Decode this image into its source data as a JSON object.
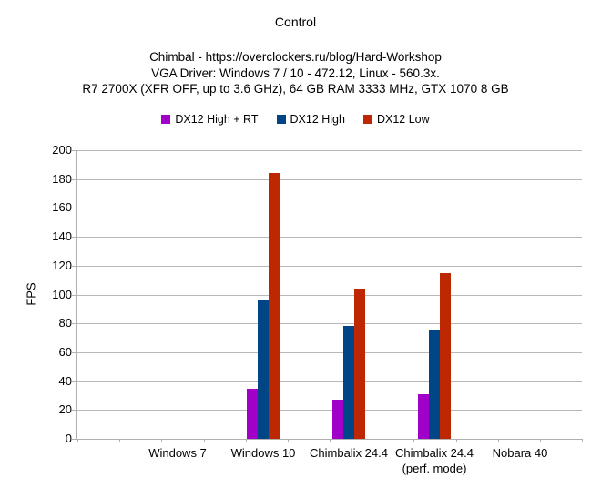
{
  "title": "Control",
  "subtitle_lines": [
    "Chimbal - https://overclockers.ru/blog/Hard-Workshop",
    "VGA Driver: Windows 7 / 10 - 472.12, Linux - 560.3x.",
    "R7 2700X (XFR OFF, up to 3.6 GHz), 64 GB RAM 3333 MHz, GTX 1070 8 GB"
  ],
  "chart_data": {
    "type": "bar",
    "title": "Control",
    "categories": [
      "Windows 7",
      "Windows 10",
      "Chimbalix 24.4",
      "Chimbalix 24.4\n(perf. mode)",
      "Nobara 40"
    ],
    "series": [
      {
        "name": "DX12 High + RT",
        "color": "#A000C8",
        "values": [
          0,
          35,
          27,
          31,
          0
        ]
      },
      {
        "name": "DX12 High",
        "color": "#004586",
        "values": [
          0,
          96,
          78,
          76,
          0
        ]
      },
      {
        "name": "DX12 Low",
        "color": "#BD2802",
        "values": [
          0,
          184,
          104,
          115,
          0
        ]
      }
    ],
    "xlabel": "",
    "ylabel": "FPS",
    "ylim": [
      0,
      200
    ],
    "ytick_step": 20,
    "grid": true,
    "legend_position": "top",
    "colors": {
      "gridline": "#b8b8b8",
      "axis": "#b0b0b0",
      "text": "#000000",
      "background": "#ffffff"
    }
  }
}
